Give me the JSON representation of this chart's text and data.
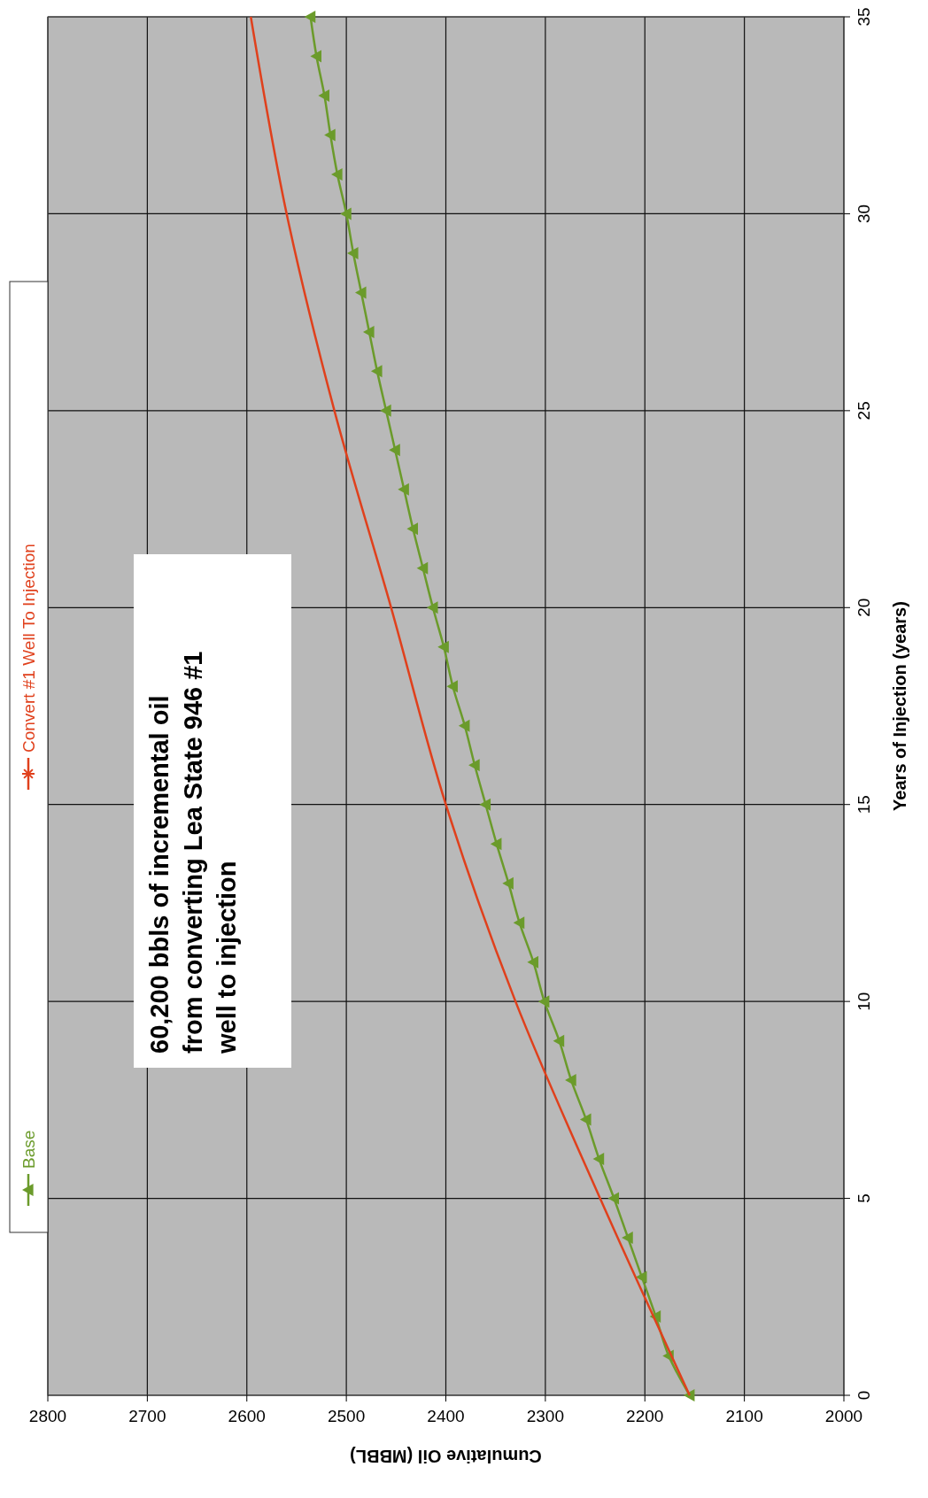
{
  "chart_data": {
    "type": "line",
    "xlabel": "Cumulative Oil (MBBL)",
    "ylabel": "Years of Injection (years)",
    "xlim": [
      2800,
      2000
    ],
    "xticks": [
      2800,
      2700,
      2600,
      2500,
      2400,
      2300,
      2200,
      2100,
      2000
    ],
    "ylim": [
      0,
      35
    ],
    "yticks": [
      0,
      5,
      10,
      15,
      20,
      25,
      30,
      35
    ],
    "grid": true,
    "legend": "left",
    "series": [
      {
        "name": "Base",
        "color": "#6b9b2b",
        "marker": "triangle",
        "x": [
          2155,
          2176,
          2189,
          2203,
          2217,
          2231,
          2246,
          2259,
          2274,
          2286,
          2301,
          2312,
          2326,
          2337,
          2349,
          2360,
          2371,
          2381,
          2393,
          2402,
          2413,
          2423,
          2433,
          2442,
          2451,
          2460,
          2469,
          2477,
          2485,
          2493,
          2500,
          2509,
          2516,
          2522,
          2530,
          2536
        ],
        "values": [
          0,
          1,
          2,
          3,
          4,
          5,
          6,
          7,
          8,
          9,
          10,
          11,
          12,
          13,
          14,
          15,
          16,
          17,
          18,
          19,
          20,
          21,
          22,
          23,
          24,
          25,
          26,
          27,
          28,
          29,
          30,
          31,
          32,
          33,
          34,
          35
        ]
      },
      {
        "name": "Convert #1 Well To Injection",
        "color": "#e0401c",
        "marker": "none",
        "x": [
          2155,
          2245,
          2330,
          2400,
          2455,
          2512,
          2560,
          2596
        ],
        "values": [
          0,
          5,
          10,
          15,
          20,
          25,
          30,
          35
        ]
      }
    ],
    "annotations": [
      "60,200 bbls of incremental oil from converting Lea State 946 #1 well to injection"
    ]
  }
}
